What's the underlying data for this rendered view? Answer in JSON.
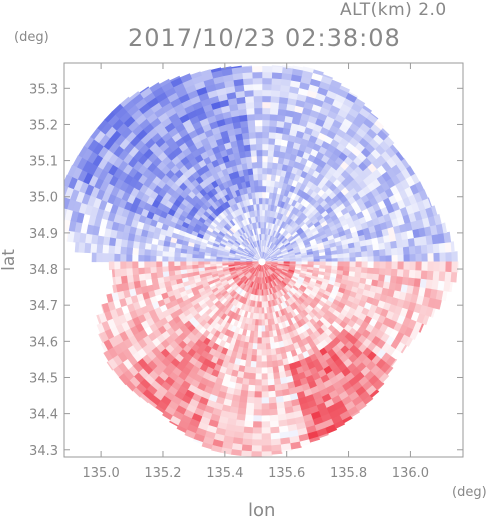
{
  "header": {
    "altitude_label": "ALT(km) 2.0",
    "timestamp": "2017/10/23 02:38:08"
  },
  "chart_data": {
    "type": "heatmap",
    "title": "2017/10/23 02:38:08",
    "subtitle": "ALT(km) 2.0",
    "xlabel": "lon",
    "ylabel": "lat",
    "x_unit": "(deg)",
    "y_unit": "(deg)",
    "xlim": [
      134.88,
      136.17
    ],
    "ylim": [
      34.28,
      35.37
    ],
    "x_ticks": [
      135.0,
      135.2,
      135.4,
      135.6,
      135.8,
      136.0
    ],
    "x_tick_labels": [
      "135.0",
      "135.2",
      "135.4",
      "135.6",
      "135.8",
      "136.0"
    ],
    "y_ticks": [
      34.3,
      34.4,
      34.5,
      34.6,
      34.7,
      34.8,
      34.9,
      35.0,
      35.1,
      35.2,
      35.3
    ],
    "y_tick_labels": [
      "34.3",
      "34.4",
      "34.5",
      "34.6",
      "34.7",
      "34.8",
      "34.9",
      "35.0",
      "35.1",
      "35.2",
      "35.3"
    ],
    "radar_center": {
      "lon": 135.52,
      "lat": 34.82
    },
    "colormap": {
      "negative": "#3f4fe0",
      "neutral": "#ffffff",
      "positive": "#ee3545"
    },
    "grid": false,
    "legend": "none"
  }
}
